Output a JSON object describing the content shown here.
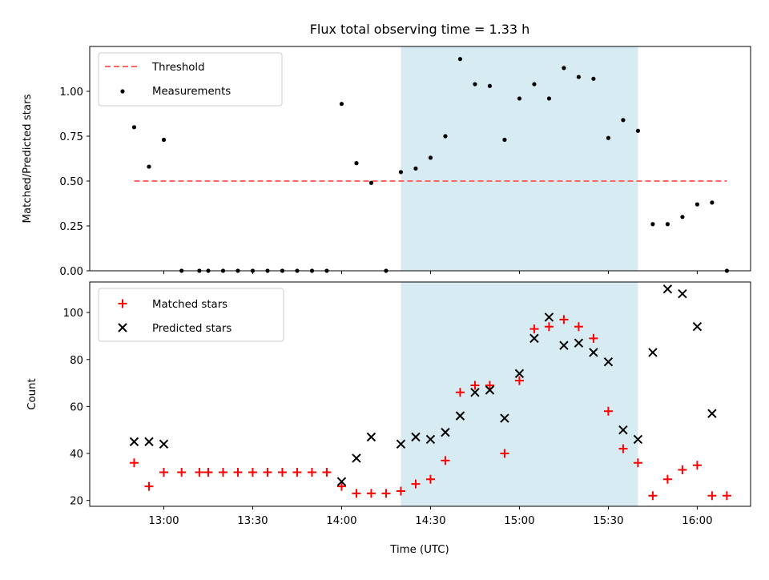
{
  "chart_data": [
    {
      "type": "scatter",
      "title": "Flux total observing time = 1.33 h",
      "ylabel": "Matched/Predicted stars",
      "xlabel": "",
      "x_range_minutes": [
        "12:35",
        "16:18"
      ],
      "ylim": [
        0,
        1.25
      ],
      "yticks": [
        0.0,
        0.25,
        0.5,
        0.75,
        1.0
      ],
      "ytick_labels": [
        "0.00",
        "0.25",
        "0.50",
        "0.75",
        "1.00"
      ],
      "xticks": [
        "13:00",
        "13:30",
        "14:00",
        "14:30",
        "15:00",
        "15:30",
        "16:00"
      ],
      "shaded_span": {
        "from": "14:20",
        "to": "15:40",
        "color": "#add8e6"
      },
      "legend": {
        "placement": "upper left",
        "entries": [
          "Threshold",
          "Measurements"
        ]
      },
      "threshold": {
        "name": "Threshold",
        "value": 0.5,
        "from": "12:50",
        "to": "16:10",
        "color": "#ff6666",
        "style": "dashed"
      },
      "series": [
        {
          "name": "Measurements",
          "color": "#000000",
          "marker": "dot",
          "points": [
            [
              "12:50",
              0.8
            ],
            [
              "12:55",
              0.58
            ],
            [
              "13:00",
              0.73
            ],
            [
              "13:06",
              0.0
            ],
            [
              "13:12",
              0.0
            ],
            [
              "13:15",
              0.0
            ],
            [
              "13:20",
              0.0
            ],
            [
              "13:25",
              0.0
            ],
            [
              "13:30",
              0.0
            ],
            [
              "13:35",
              0.0
            ],
            [
              "13:40",
              0.0
            ],
            [
              "13:45",
              0.0
            ],
            [
              "13:50",
              0.0
            ],
            [
              "13:55",
              0.0
            ],
            [
              "14:00",
              0.93
            ],
            [
              "14:05",
              0.6
            ],
            [
              "14:10",
              0.49
            ],
            [
              "14:15",
              0.0
            ],
            [
              "14:20",
              0.55
            ],
            [
              "14:25",
              0.57
            ],
            [
              "14:30",
              0.63
            ],
            [
              "14:35",
              0.75
            ],
            [
              "14:40",
              1.18
            ],
            [
              "14:45",
              1.04
            ],
            [
              "14:50",
              1.03
            ],
            [
              "14:55",
              0.73
            ],
            [
              "15:00",
              0.96
            ],
            [
              "15:05",
              1.04
            ],
            [
              "15:10",
              0.96
            ],
            [
              "15:15",
              1.13
            ],
            [
              "15:20",
              1.08
            ],
            [
              "15:25",
              1.07
            ],
            [
              "15:30",
              0.74
            ],
            [
              "15:35",
              0.84
            ],
            [
              "15:40",
              0.78
            ],
            [
              "15:45",
              0.26
            ],
            [
              "15:50",
              0.26
            ],
            [
              "15:55",
              0.3
            ],
            [
              "16:00",
              0.37
            ],
            [
              "16:05",
              0.38
            ],
            [
              "16:10",
              0.0
            ]
          ]
        }
      ]
    },
    {
      "type": "scatter",
      "title": "",
      "ylabel": "Count",
      "xlabel": "Time (UTC)",
      "x_range_minutes": [
        "12:35",
        "16:18"
      ],
      "ylim": [
        17.5,
        113
      ],
      "yticks": [
        20,
        40,
        60,
        80,
        100
      ],
      "ytick_labels": [
        "20",
        "40",
        "60",
        "80",
        "100"
      ],
      "xticks": [
        "13:00",
        "13:30",
        "14:00",
        "14:30",
        "15:00",
        "15:30",
        "16:00"
      ],
      "shaded_span": {
        "from": "14:20",
        "to": "15:40",
        "color": "#add8e6"
      },
      "legend": {
        "placement": "upper left",
        "entries": [
          "Matched stars",
          "Predicted stars"
        ]
      },
      "series": [
        {
          "name": "Matched stars",
          "color": "#ff0000",
          "marker": "plus",
          "points": [
            [
              "12:50",
              36
            ],
            [
              "12:55",
              26
            ],
            [
              "13:00",
              32
            ],
            [
              "13:06",
              32
            ],
            [
              "13:12",
              32
            ],
            [
              "13:15",
              32
            ],
            [
              "13:20",
              32
            ],
            [
              "13:25",
              32
            ],
            [
              "13:30",
              32
            ],
            [
              "13:35",
              32
            ],
            [
              "13:40",
              32
            ],
            [
              "13:45",
              32
            ],
            [
              "13:50",
              32
            ],
            [
              "13:55",
              32
            ],
            [
              "14:00",
              26
            ],
            [
              "14:05",
              23
            ],
            [
              "14:10",
              23
            ],
            [
              "14:15",
              23
            ],
            [
              "14:20",
              24
            ],
            [
              "14:25",
              27
            ],
            [
              "14:30",
              29
            ],
            [
              "14:35",
              37
            ],
            [
              "14:40",
              66
            ],
            [
              "14:45",
              69
            ],
            [
              "14:50",
              69
            ],
            [
              "14:55",
              40
            ],
            [
              "15:00",
              71
            ],
            [
              "15:05",
              93
            ],
            [
              "15:10",
              94
            ],
            [
              "15:15",
              97
            ],
            [
              "15:20",
              94
            ],
            [
              "15:25",
              89
            ],
            [
              "15:30",
              58
            ],
            [
              "15:35",
              42
            ],
            [
              "15:40",
              36
            ],
            [
              "15:45",
              22
            ],
            [
              "15:50",
              29
            ],
            [
              "15:55",
              33
            ],
            [
              "16:00",
              35
            ],
            [
              "16:05",
              22
            ],
            [
              "16:10",
              22
            ]
          ]
        },
        {
          "name": "Predicted stars",
          "color": "#000000",
          "marker": "x",
          "points": [
            [
              "12:50",
              45
            ],
            [
              "12:55",
              45
            ],
            [
              "13:00",
              44
            ],
            [
              "14:00",
              28
            ],
            [
              "14:05",
              38
            ],
            [
              "14:10",
              47
            ],
            [
              "14:20",
              44
            ],
            [
              "14:25",
              47
            ],
            [
              "14:30",
              46
            ],
            [
              "14:35",
              49
            ],
            [
              "14:40",
              56
            ],
            [
              "14:45",
              66
            ],
            [
              "14:50",
              67
            ],
            [
              "14:55",
              55
            ],
            [
              "15:00",
              74
            ],
            [
              "15:05",
              89
            ],
            [
              "15:10",
              98
            ],
            [
              "15:15",
              86
            ],
            [
              "15:20",
              87
            ],
            [
              "15:25",
              83
            ],
            [
              "15:30",
              79
            ],
            [
              "15:35",
              50
            ],
            [
              "15:40",
              46
            ],
            [
              "15:45",
              83
            ],
            [
              "15:50",
              110
            ],
            [
              "15:55",
              108
            ],
            [
              "16:00",
              94
            ],
            [
              "16:05",
              57
            ]
          ]
        }
      ]
    }
  ]
}
